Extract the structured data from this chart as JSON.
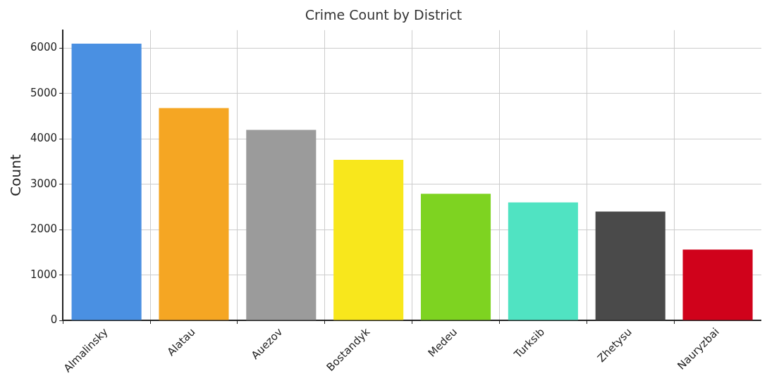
{
  "chart_data": {
    "type": "bar",
    "title": "Crime Count by District",
    "ylabel": "Count",
    "categories": [
      "Almalinsky",
      "Alatau",
      "Auezov",
      "Bostandyk",
      "Medeu",
      "Turksib",
      "Zhetysu",
      "Nauryzbai"
    ],
    "values": [
      6100,
      4680,
      4200,
      3540,
      2790,
      2600,
      2400,
      1560
    ],
    "colors": [
      "#4a90e2",
      "#f5a623",
      "#9b9b9b",
      "#f8e71c",
      "#7ed321",
      "#50e3c2",
      "#4a4a4a",
      "#d0021b"
    ],
    "ylim": [
      0,
      6400
    ],
    "yticks": [
      0,
      1000,
      2000,
      3000,
      4000,
      5000,
      6000
    ],
    "grid": true
  }
}
